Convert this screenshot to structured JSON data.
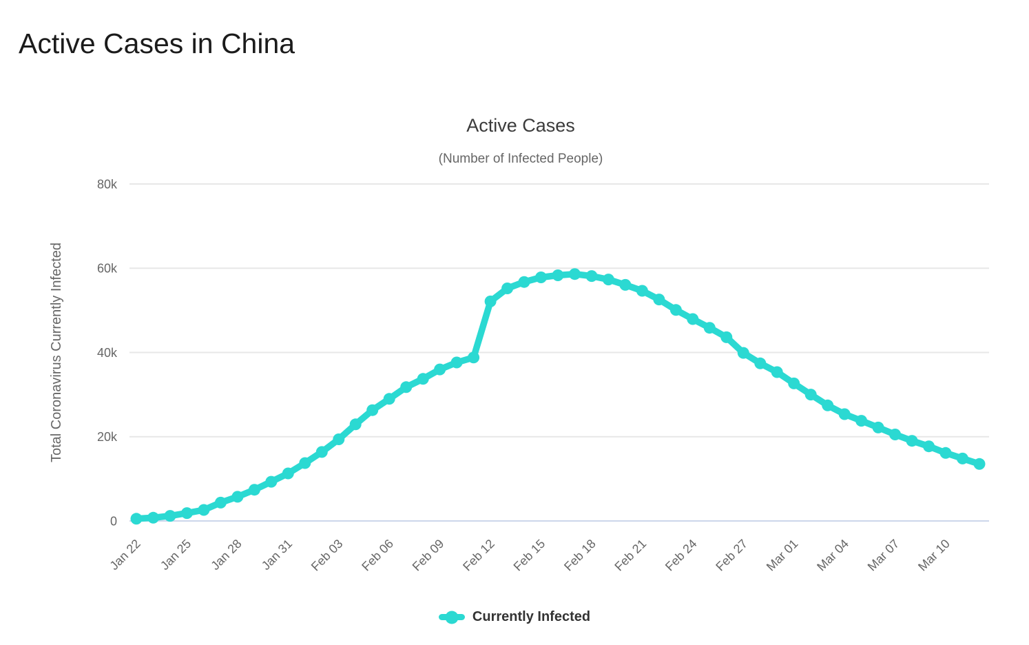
{
  "page": {
    "title": "Active Cases in China"
  },
  "colors": {
    "line": "#2bd9d2",
    "grid": "#e7e7e7",
    "axis_line": "#ccd6eb",
    "tick_label": "#666666",
    "axis_title": "#666666",
    "chart_title": "#3b3b3b",
    "chart_subtitle": "#666666",
    "page_title": "#1b1b1b",
    "legend_text": "#333333"
  },
  "chart_data": {
    "type": "line",
    "title": "Active Cases",
    "subtitle": "(Number of Infected People)",
    "xlabel": "",
    "ylabel": "Total Coronavirus Currently Infected",
    "ylim": [
      0,
      80000
    ],
    "grid": true,
    "legend_position": "bottom",
    "yticks": [
      {
        "value": 0,
        "label": "0"
      },
      {
        "value": 20000,
        "label": "20k"
      },
      {
        "value": 40000,
        "label": "40k"
      },
      {
        "value": 60000,
        "label": "60k"
      },
      {
        "value": 80000,
        "label": "80k"
      }
    ],
    "x_tick_every": 3,
    "categories": [
      "Jan 22",
      "Jan 23",
      "Jan 24",
      "Jan 25",
      "Jan 26",
      "Jan 27",
      "Jan 28",
      "Jan 29",
      "Jan 30",
      "Jan 31",
      "Feb 01",
      "Feb 02",
      "Feb 03",
      "Feb 04",
      "Feb 05",
      "Feb 06",
      "Feb 07",
      "Feb 08",
      "Feb 09",
      "Feb 10",
      "Feb 11",
      "Feb 12",
      "Feb 13",
      "Feb 14",
      "Feb 15",
      "Feb 16",
      "Feb 17",
      "Feb 18",
      "Feb 19",
      "Feb 20",
      "Feb 21",
      "Feb 22",
      "Feb 23",
      "Feb 24",
      "Feb 25",
      "Feb 26",
      "Feb 27",
      "Feb 28",
      "Feb 29",
      "Mar 01",
      "Mar 02",
      "Mar 03",
      "Mar 04",
      "Mar 05",
      "Mar 06",
      "Mar 07",
      "Mar 08",
      "Mar 09",
      "Mar 10",
      "Mar 11",
      "Mar 12"
    ],
    "series": [
      {
        "name": "Currently Infected",
        "color": "#2bd9d2",
        "values": [
          528,
          771,
          1208,
          1870,
          2613,
          4349,
          5739,
          7417,
          9308,
          11289,
          13748,
          16369,
          19381,
          22942,
          26302,
          28984,
          31774,
          33738,
          35982,
          37626,
          38800,
          52130,
          55220,
          56730,
          57840,
          58320,
          58610,
          58140,
          57330,
          56050,
          54640,
          52580,
          50100,
          47940,
          45850,
          43620,
          39910,
          37410,
          35330,
          32650,
          30000,
          27430,
          25350,
          23780,
          22180,
          20530,
          19020,
          17720,
          16140,
          14830,
          13530
        ]
      }
    ]
  }
}
